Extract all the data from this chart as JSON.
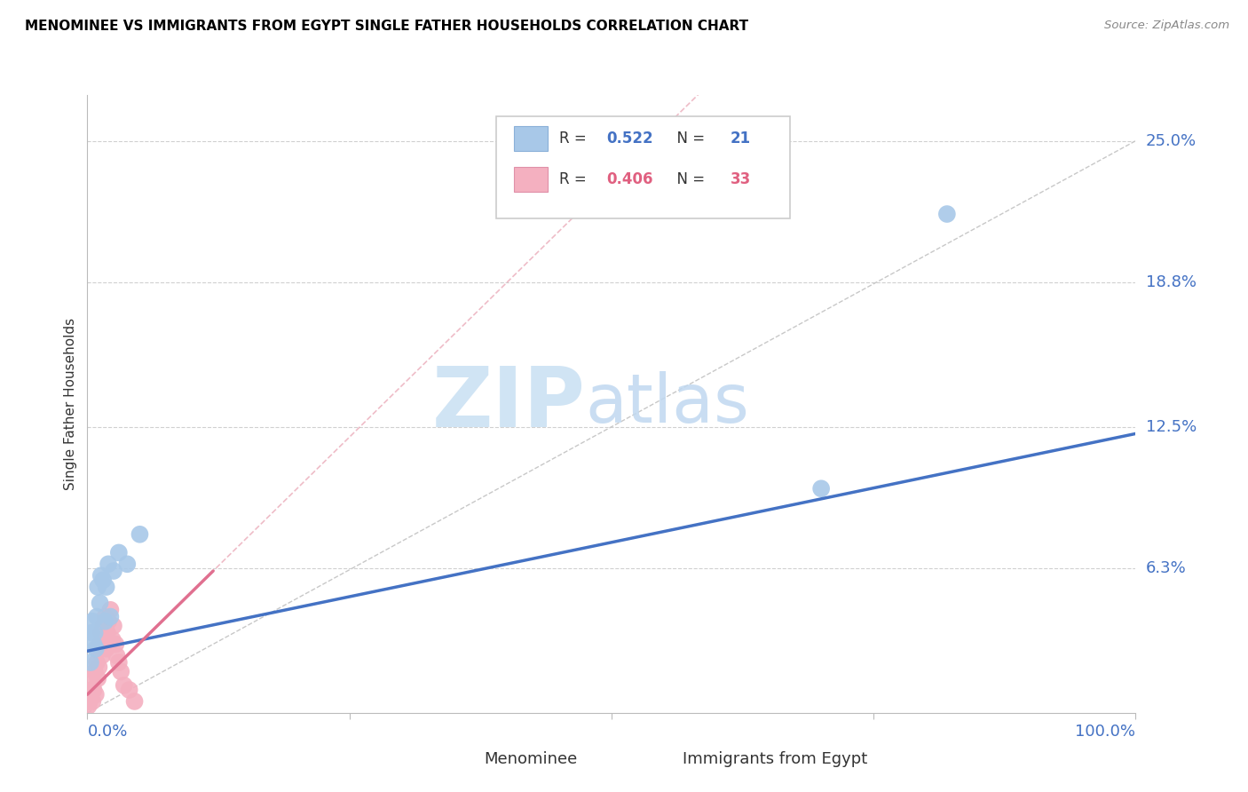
{
  "title": "MENOMINEE VS IMMIGRANTS FROM EGYPT SINGLE FATHER HOUSEHOLDS CORRELATION CHART",
  "source": "Source: ZipAtlas.com",
  "ylabel": "Single Father Households",
  "ytick_values": [
    0.0,
    0.063,
    0.125,
    0.188,
    0.25
  ],
  "ytick_labels": [
    "",
    "6.3%",
    "12.5%",
    "18.8%",
    "25.0%"
  ],
  "xtick_values": [
    0.0,
    0.25,
    0.5,
    0.75,
    1.0
  ],
  "xlim": [
    0.0,
    1.0
  ],
  "ylim": [
    0.0,
    0.27
  ],
  "blue_color": "#a8c8e8",
  "pink_color": "#f4b0c0",
  "blue_line_color": "#4472c4",
  "pink_line_color": "#e07090",
  "pink_dash_color": "#e8a0b0",
  "diagonal_color": "#c8c8c8",
  "legend_blue_r": "0.522",
  "legend_blue_n": "21",
  "legend_pink_r": "0.406",
  "legend_pink_n": "33",
  "blue_trendline": [
    0.0,
    1.0,
    0.027,
    0.122
  ],
  "pink_trendline_solid": [
    0.0,
    0.12,
    0.008,
    0.062
  ],
  "pink_trendline_dashed": [
    0.0,
    1.0,
    0.008,
    0.68
  ],
  "blue_x": [
    0.003,
    0.004,
    0.005,
    0.006,
    0.007,
    0.008,
    0.009,
    0.01,
    0.012,
    0.013,
    0.015,
    0.017,
    0.018,
    0.02,
    0.022,
    0.025,
    0.03,
    0.038,
    0.05,
    0.7,
    0.82
  ],
  "blue_y": [
    0.022,
    0.035,
    0.04,
    0.03,
    0.035,
    0.028,
    0.042,
    0.055,
    0.048,
    0.06,
    0.058,
    0.04,
    0.055,
    0.065,
    0.042,
    0.062,
    0.07,
    0.065,
    0.078,
    0.098,
    0.218
  ],
  "pink_x": [
    0.001,
    0.002,
    0.003,
    0.004,
    0.005,
    0.005,
    0.006,
    0.007,
    0.008,
    0.009,
    0.01,
    0.01,
    0.011,
    0.012,
    0.013,
    0.014,
    0.015,
    0.016,
    0.017,
    0.018,
    0.019,
    0.02,
    0.021,
    0.022,
    0.024,
    0.025,
    0.027,
    0.028,
    0.03,
    0.032,
    0.035,
    0.04,
    0.045
  ],
  "pink_y": [
    0.003,
    0.005,
    0.007,
    0.01,
    0.005,
    0.015,
    0.01,
    0.018,
    0.008,
    0.022,
    0.015,
    0.028,
    0.02,
    0.03,
    0.035,
    0.025,
    0.038,
    0.032,
    0.042,
    0.028,
    0.035,
    0.04,
    0.03,
    0.045,
    0.032,
    0.038,
    0.03,
    0.025,
    0.022,
    0.018,
    0.012,
    0.01,
    0.005
  ],
  "watermark_zip_color": "#d0e4f4",
  "watermark_atlas_color": "#c0d8f0"
}
